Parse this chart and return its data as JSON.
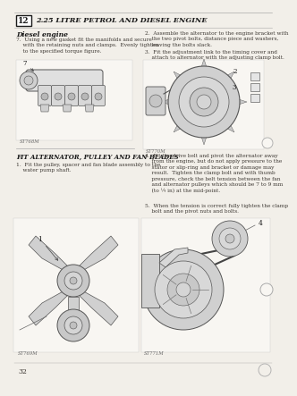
{
  "page_bg": "#f2efe9",
  "content_bg": "#f5f2ec",
  "header_text": "2.25 LITRE PETROL AND DIESEL ENGINE",
  "header_num": "12",
  "section_title": "Diesel engine",
  "item7": "7.  Using a new gasket fit the manifolds and secure\n    with the retaining nuts and clamps.  Evenly tighten\n    to the specified torque figure.",
  "item2": "2.  Assemble the alternator to the engine bracket with\n    the two pivot bolts, distance piece and washers,\n    leaving the bolts slack.",
  "item3": "3.  Fit the adjustment link to the timing cover and\n    attach to alternator with the adjusting clamp bolt.",
  "item4": "4.  Fit the drive belt and pivot the alternator away\n    from the engine, but do not apply pressure to the\n    stator or slip-ring and bracket or damage may\n    result.  Tighten the clamp bolt and with thumb\n    pressure, check the belt tension between the fan\n    and alternator pulleys which should be 7 to 9 mm\n    (to ¼ in) at the mid-point.",
  "item5": "5.  When the tension is correct fully tighten the clamp\n    bolt and the pivot nuts and bolts.",
  "section2_title": "FIT ALTERNATOR, PULLEY AND FAN BLADES",
  "item1": "1.  Fit the pulley, spacer and fan blade assembly to the\n    water pump shaft.",
  "img_labels": [
    "ST768M",
    "ST770M",
    "ST769M",
    "ST771M"
  ],
  "page_num": "32",
  "text_color": "#3a3530",
  "header_color": "#1a1a1a",
  "img_bg": "#f8f6f2",
  "line_color": "#aaaaaa"
}
